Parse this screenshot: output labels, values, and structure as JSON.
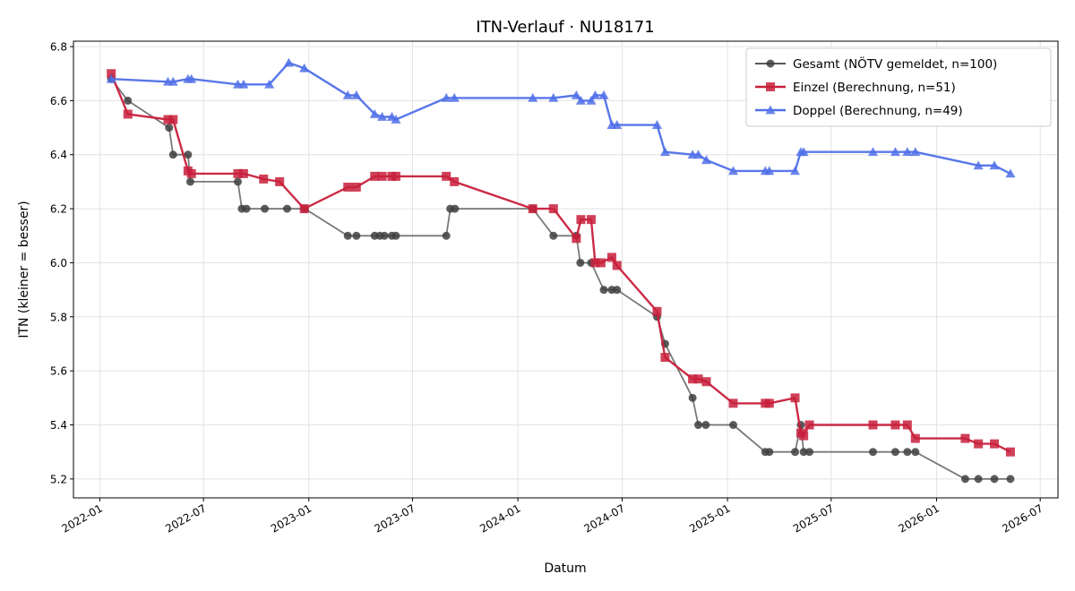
{
  "chart_data": {
    "type": "line",
    "title": "ITN-Verlauf · NU18171",
    "xlabel": "Datum",
    "ylabel": "ITN  (kleiner = besser)",
    "xlim": [
      "2021-11-16",
      "2026-08-01"
    ],
    "ylim": [
      5.13,
      6.82
    ],
    "x_ticks": [
      "2022-01",
      "2022-07",
      "2023-01",
      "2023-07",
      "2024-01",
      "2024-07",
      "2025-01",
      "2025-07",
      "2026-01",
      "2026-07"
    ],
    "y_ticks": [
      "5.2",
      "5.4",
      "5.6",
      "5.8",
      "6.0",
      "6.2",
      "6.4",
      "6.6",
      "6.8"
    ],
    "grid": true,
    "legend_position": "top-right",
    "series": [
      {
        "name": "Gesamt (NÖTV gemeldet, n=100)",
        "color": "#404040",
        "marker": "circle",
        "points": [
          [
            "2022-01-21",
            6.68
          ],
          [
            "2022-02-19",
            6.6
          ],
          [
            "2022-05-02",
            6.5
          ],
          [
            "2022-05-09",
            6.4
          ],
          [
            "2022-06-04",
            6.4
          ],
          [
            "2022-06-08",
            6.3
          ],
          [
            "2022-08-30",
            6.3
          ],
          [
            "2022-09-06",
            6.2
          ],
          [
            "2022-09-14",
            6.2
          ],
          [
            "2022-10-16",
            6.2
          ],
          [
            "2022-11-24",
            6.2
          ],
          [
            "2022-12-25",
            6.2
          ],
          [
            "2023-03-10",
            6.1
          ],
          [
            "2023-03-25",
            6.1
          ],
          [
            "2023-04-26",
            6.1
          ],
          [
            "2023-05-05",
            6.1
          ],
          [
            "2023-05-13",
            6.1
          ],
          [
            "2023-05-26",
            6.1
          ],
          [
            "2023-06-02",
            6.1
          ],
          [
            "2023-08-29",
            6.1
          ],
          [
            "2023-09-05",
            6.2
          ],
          [
            "2023-09-13",
            6.2
          ],
          [
            "2024-01-27",
            6.2
          ],
          [
            "2024-03-03",
            6.1
          ],
          [
            "2024-04-12",
            6.1
          ],
          [
            "2024-04-19",
            6.0
          ],
          [
            "2024-05-08",
            6.0
          ],
          [
            "2024-05-30",
            5.9
          ],
          [
            "2024-06-13",
            5.9
          ],
          [
            "2024-06-22",
            5.9
          ],
          [
            "2024-08-31",
            5.8
          ],
          [
            "2024-09-14",
            5.7
          ],
          [
            "2024-11-01",
            5.5
          ],
          [
            "2024-11-11",
            5.4
          ],
          [
            "2024-11-24",
            5.4
          ],
          [
            "2025-01-11",
            5.4
          ],
          [
            "2025-03-08",
            5.3
          ],
          [
            "2025-03-15",
            5.3
          ],
          [
            "2025-04-29",
            5.3
          ],
          [
            "2025-05-09",
            5.4
          ],
          [
            "2025-05-14",
            5.3
          ],
          [
            "2025-05-24",
            5.3
          ],
          [
            "2025-09-12",
            5.3
          ],
          [
            "2025-10-21",
            5.3
          ],
          [
            "2025-11-11",
            5.3
          ],
          [
            "2025-11-25",
            5.3
          ],
          [
            "2026-02-20",
            5.2
          ],
          [
            "2026-03-15",
            5.2
          ],
          [
            "2026-04-12",
            5.2
          ],
          [
            "2026-05-10",
            5.2
          ]
        ]
      },
      {
        "name": "Einzel (Berechnung, n=51)",
        "color": "#c8203c",
        "marker": "square",
        "points": [
          [
            "2022-01-21",
            6.7
          ],
          [
            "2022-02-19",
            6.55
          ],
          [
            "2022-04-30",
            6.53
          ],
          [
            "2022-05-09",
            6.53
          ],
          [
            "2022-06-04",
            6.34
          ],
          [
            "2022-06-10",
            6.33
          ],
          [
            "2022-08-30",
            6.33
          ],
          [
            "2022-09-09",
            6.33
          ],
          [
            "2022-10-14",
            6.31
          ],
          [
            "2022-11-11",
            6.3
          ],
          [
            "2022-12-24",
            6.2
          ],
          [
            "2023-03-10",
            6.28
          ],
          [
            "2023-03-25",
            6.28
          ],
          [
            "2023-04-26",
            6.32
          ],
          [
            "2023-05-09",
            6.32
          ],
          [
            "2023-05-26",
            6.32
          ],
          [
            "2023-06-02",
            6.32
          ],
          [
            "2023-08-29",
            6.32
          ],
          [
            "2023-09-12",
            6.3
          ],
          [
            "2024-01-27",
            6.2
          ],
          [
            "2024-03-03",
            6.2
          ],
          [
            "2024-04-12",
            6.09
          ],
          [
            "2024-04-20",
            6.16
          ],
          [
            "2024-05-08",
            6.16
          ],
          [
            "2024-05-15",
            6.0
          ],
          [
            "2024-05-25",
            6.0
          ],
          [
            "2024-06-13",
            6.02
          ],
          [
            "2024-06-22",
            5.99
          ],
          [
            "2024-08-31",
            5.82
          ],
          [
            "2024-09-14",
            5.65
          ],
          [
            "2024-11-01",
            5.57
          ],
          [
            "2024-11-11",
            5.57
          ],
          [
            "2024-11-25",
            5.56
          ],
          [
            "2025-01-11",
            5.48
          ],
          [
            "2025-03-08",
            5.48
          ],
          [
            "2025-03-15",
            5.48
          ],
          [
            "2025-04-29",
            5.5
          ],
          [
            "2025-05-09",
            5.37
          ],
          [
            "2025-05-14",
            5.36
          ],
          [
            "2025-05-24",
            5.4
          ],
          [
            "2025-09-12",
            5.4
          ],
          [
            "2025-10-21",
            5.4
          ],
          [
            "2025-11-11",
            5.4
          ],
          [
            "2025-11-25",
            5.35
          ],
          [
            "2026-02-20",
            5.35
          ],
          [
            "2026-03-15",
            5.33
          ],
          [
            "2026-04-12",
            5.33
          ],
          [
            "2026-05-10",
            5.3
          ]
        ]
      },
      {
        "name": "Doppel (Berechnung, n=49)",
        "color": "#5070e8",
        "marker": "triangle",
        "points": [
          [
            "2022-01-21",
            6.68
          ],
          [
            "2022-04-30",
            6.67
          ],
          [
            "2022-05-09",
            6.67
          ],
          [
            "2022-06-04",
            6.68
          ],
          [
            "2022-06-10",
            6.68
          ],
          [
            "2022-08-30",
            6.66
          ],
          [
            "2022-09-09",
            6.66
          ],
          [
            "2022-10-24",
            6.66
          ],
          [
            "2022-11-27",
            6.74
          ],
          [
            "2022-12-24",
            6.72
          ],
          [
            "2023-03-10",
            6.62
          ],
          [
            "2023-03-25",
            6.62
          ],
          [
            "2023-04-26",
            6.55
          ],
          [
            "2023-05-09",
            6.54
          ],
          [
            "2023-05-26",
            6.54
          ],
          [
            "2023-06-02",
            6.53
          ],
          [
            "2023-08-29",
            6.61
          ],
          [
            "2023-09-12",
            6.61
          ],
          [
            "2024-01-27",
            6.61
          ],
          [
            "2024-03-03",
            6.61
          ],
          [
            "2024-04-12",
            6.62
          ],
          [
            "2024-04-20",
            6.6
          ],
          [
            "2024-05-08",
            6.6
          ],
          [
            "2024-05-15",
            6.62
          ],
          [
            "2024-05-30",
            6.62
          ],
          [
            "2024-06-13",
            6.51
          ],
          [
            "2024-06-22",
            6.51
          ],
          [
            "2024-08-31",
            6.51
          ],
          [
            "2024-09-14",
            6.41
          ],
          [
            "2024-11-01",
            6.4
          ],
          [
            "2024-11-11",
            6.4
          ],
          [
            "2024-11-25",
            6.38
          ],
          [
            "2025-01-11",
            6.34
          ],
          [
            "2025-03-08",
            6.34
          ],
          [
            "2025-03-15",
            6.34
          ],
          [
            "2025-04-29",
            6.34
          ],
          [
            "2025-05-09",
            6.41
          ],
          [
            "2025-05-14",
            6.41
          ],
          [
            "2025-09-12",
            6.41
          ],
          [
            "2025-10-21",
            6.41
          ],
          [
            "2025-11-11",
            6.41
          ],
          [
            "2025-11-25",
            6.41
          ],
          [
            "2026-03-15",
            6.36
          ],
          [
            "2026-04-12",
            6.36
          ],
          [
            "2026-05-10",
            6.33
          ]
        ]
      }
    ]
  }
}
